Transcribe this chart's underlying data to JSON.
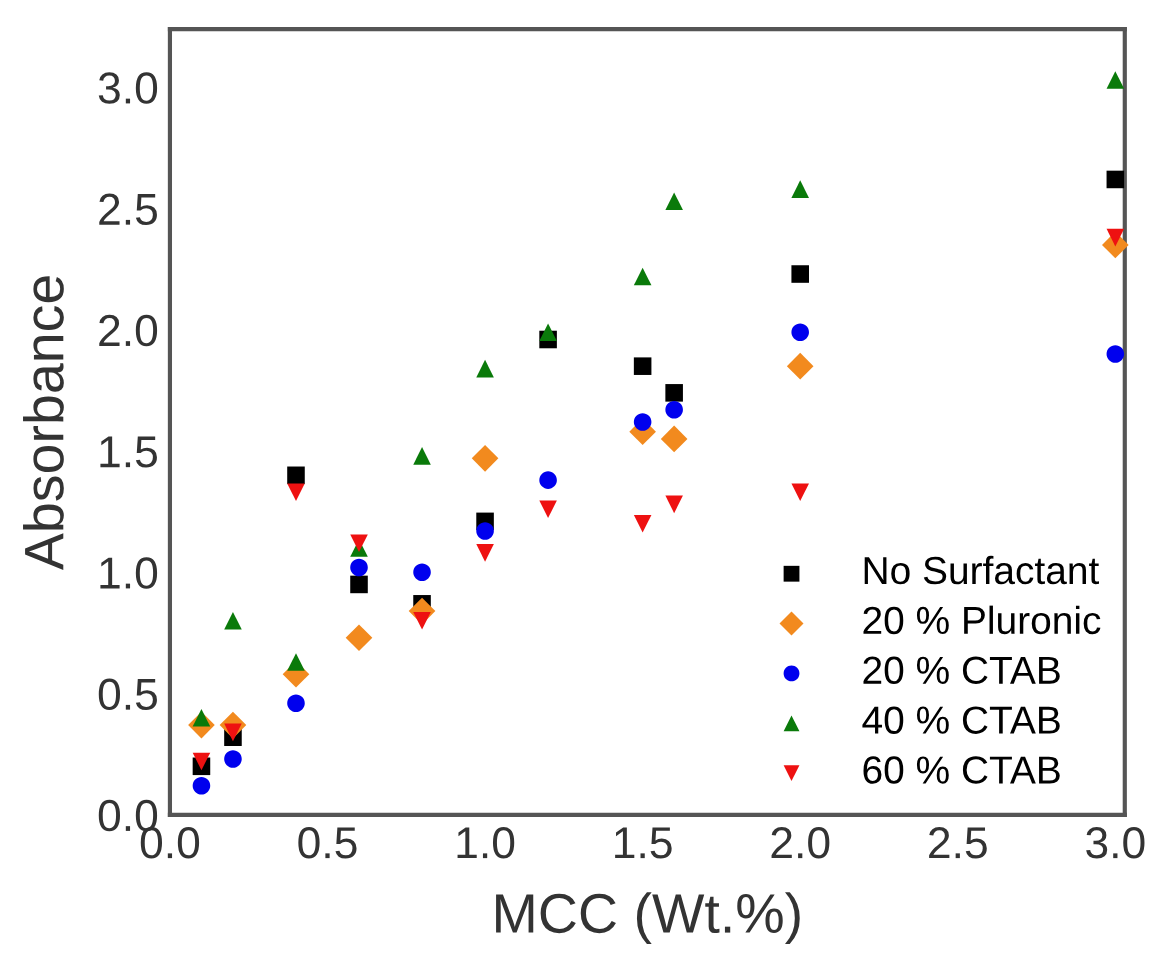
{
  "chart_data": {
    "type": "scatter",
    "xlabel": "MCC (Wt.%)",
    "ylabel": "Absorbance",
    "x": [
      0.1,
      0.2,
      0.4,
      0.6,
      0.8,
      1.0,
      1.2,
      1.5,
      1.6,
      2.0,
      3.0
    ],
    "xlim": [
      0,
      3.03
    ],
    "ylim": [
      0,
      3.24
    ],
    "xticks": [
      {
        "value": 0,
        "label": "0.0"
      },
      0.5,
      {
        "value": 1,
        "label": "1.0"
      },
      1.5,
      {
        "value": 2,
        "label": "2.0"
      },
      2.5,
      {
        "value": 3,
        "label": "3.0"
      }
    ],
    "yticks": [
      {
        "value": 0,
        "label": "0.0"
      },
      0.5,
      {
        "value": 1,
        "label": "1.0"
      },
      1.5,
      {
        "value": 2,
        "label": "2.0"
      },
      2.5,
      {
        "value": 3,
        "label": "3.0"
      }
    ],
    "grid": false,
    "legend": "bottom right",
    "series": [
      {
        "name": "No Surfactant",
        "color": "#000000",
        "marker": "square",
        "values": [
          0.2,
          0.32,
          1.4,
          0.95,
          0.87,
          1.21,
          1.96,
          1.85,
          1.74,
          2.23,
          2.62
        ]
      },
      {
        "name": "20 % Pluronic",
        "color": "#f28a1e",
        "marker": "diamond",
        "values": [
          0.37,
          0.37,
          0.58,
          0.73,
          0.84,
          1.47,
          null,
          1.58,
          1.55,
          1.85,
          2.35
        ]
      },
      {
        "name": "20 % CTAB",
        "color": "#0000ee",
        "marker": "circle",
        "values": [
          0.12,
          0.23,
          0.46,
          1.02,
          1.0,
          1.17,
          1.38,
          1.62,
          1.67,
          1.99,
          1.9
        ]
      },
      {
        "name": "40 % CTAB",
        "color": "#0a7a0a",
        "marker": "triangle",
        "values": [
          0.4,
          0.8,
          0.63,
          1.1,
          1.48,
          1.84,
          1.99,
          2.22,
          2.53,
          2.58,
          3.03
        ]
      },
      {
        "name": "60 % CTAB",
        "color": "#ee1111",
        "marker": "triangle_down",
        "values": [
          0.22,
          0.34,
          1.33,
          1.12,
          0.8,
          1.08,
          1.26,
          1.2,
          1.28,
          1.33,
          2.38
        ]
      }
    ]
  }
}
